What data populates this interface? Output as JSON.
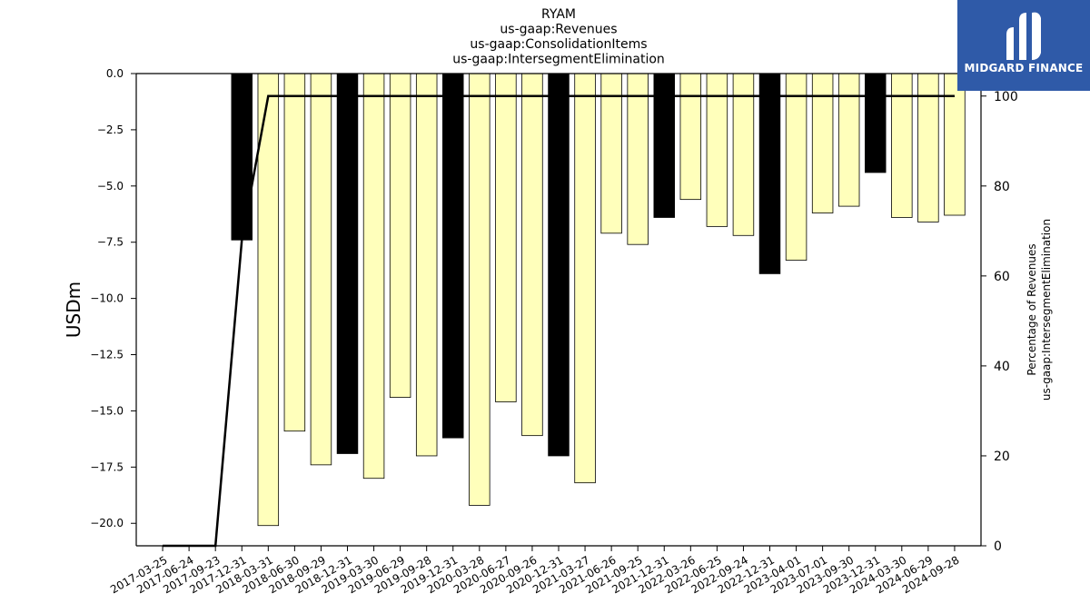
{
  "chart_data": {
    "type": "bar",
    "title_lines": [
      "RYAM",
      "us-gaap:Revenues",
      "us-gaap:ConsolidationItems",
      "us-gaap:IntersegmentElimination"
    ],
    "ylabel": "USDm",
    "ylabel_right": [
      "Percentage of Revenues",
      "us-gaap:IntersegmentElimination"
    ],
    "ylim": [
      -21,
      0
    ],
    "ylim_right": [
      0,
      105
    ],
    "yticks": [
      0,
      -2.5,
      -5,
      -7.5,
      -10,
      -12.5,
      -15,
      -17.5,
      -20
    ],
    "yticks_right": [
      0,
      20,
      40,
      60,
      80,
      100
    ],
    "categories": [
      "2017-03-25",
      "2017-06-24",
      "2017-09-23",
      "2017-12-31",
      "2018-03-31",
      "2018-06-30",
      "2018-09-29",
      "2018-12-31",
      "2019-03-30",
      "2019-06-29",
      "2019-09-28",
      "2019-12-31",
      "2020-03-28",
      "2020-06-27",
      "2020-09-26",
      "2020-12-31",
      "2021-03-27",
      "2021-06-26",
      "2021-09-25",
      "2021-12-31",
      "2022-03-26",
      "2022-06-25",
      "2022-09-24",
      "2022-12-31",
      "2023-04-01",
      "2023-07-01",
      "2023-09-30",
      "2023-12-31",
      "2024-03-30",
      "2024-06-29",
      "2024-09-28"
    ],
    "values": [
      null,
      null,
      null,
      -7.4,
      -20.1,
      -15.9,
      -17.4,
      -16.9,
      -18.0,
      -14.4,
      -17.0,
      -16.2,
      -19.2,
      -14.6,
      -16.1,
      -17.0,
      -18.2,
      -7.1,
      -7.6,
      -6.4,
      -5.6,
      -6.8,
      -7.2,
      -8.9,
      -8.3,
      -6.2,
      -5.9,
      -4.4,
      -6.4,
      -6.6,
      -6.3
    ],
    "quarter_end": [
      false,
      false,
      false,
      true,
      false,
      false,
      false,
      true,
      false,
      false,
      false,
      true,
      false,
      false,
      false,
      true,
      false,
      false,
      false,
      true,
      false,
      false,
      false,
      true,
      false,
      false,
      false,
      true,
      false,
      false,
      false
    ],
    "percentage_line": [
      0,
      0,
      0,
      68,
      100,
      100,
      100,
      100,
      100,
      100,
      100,
      100,
      100,
      100,
      100,
      100,
      100,
      100,
      100,
      100,
      100,
      100,
      100,
      100,
      100,
      100,
      100,
      100,
      100,
      100,
      100
    ],
    "colors": {
      "quarter_bar": "#000000",
      "other_bar": "#ffffbb",
      "line": "#000000"
    }
  },
  "logo": {
    "text": "MIDGARD FINANCE",
    "background": "#2f5aa8"
  }
}
